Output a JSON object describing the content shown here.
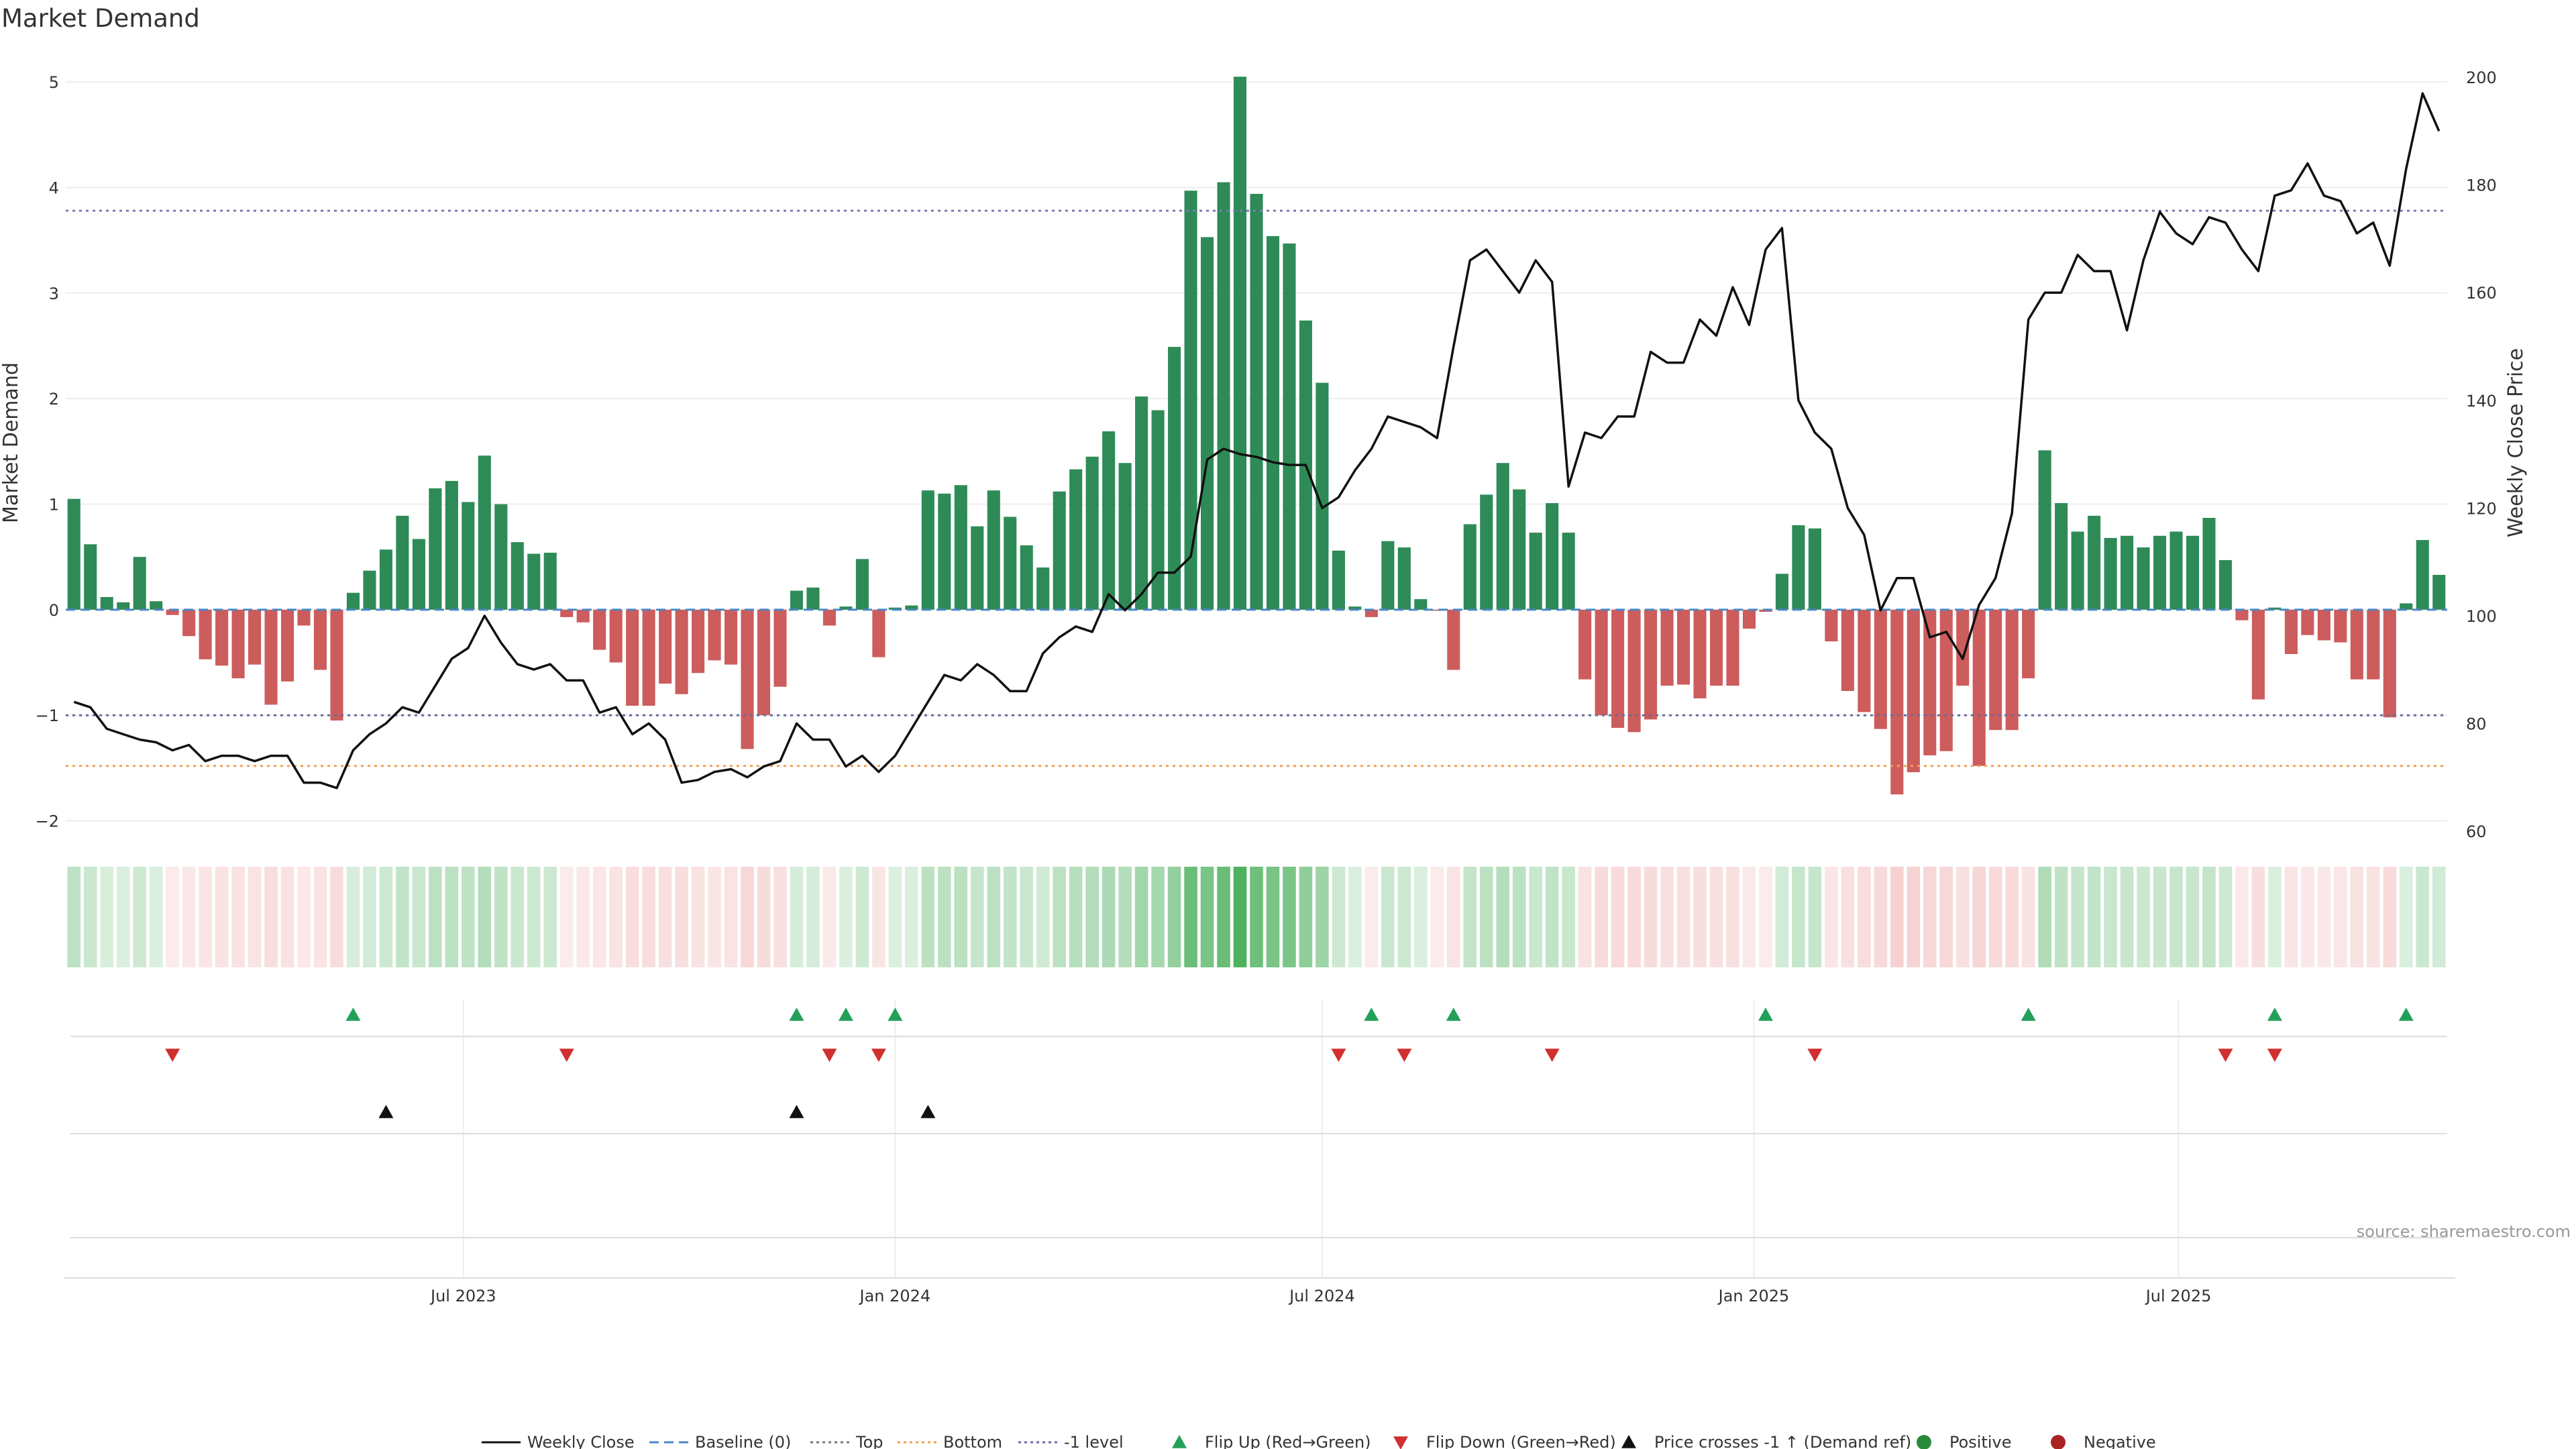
{
  "chart_data": {
    "type": "bar",
    "title": "Market Demand",
    "ylabel": "Market Demand",
    "y2label": "Weekly Close Price",
    "ylim": [
      -2.2,
      5.3
    ],
    "y2lim": [
      58,
      205
    ],
    "yticks": [
      5,
      4,
      3,
      2,
      1,
      0,
      -1,
      -2
    ],
    "ytick_labels": [
      "5",
      "4",
      "3",
      "2",
      "1",
      "0",
      "−1",
      "−2"
    ],
    "y2ticks": [
      200,
      180,
      160,
      140,
      120,
      100,
      80,
      60
    ],
    "x_start": "2023-01-16",
    "x_step_days": 7,
    "x_month_ticks": [
      {
        "date": "2023-07-01",
        "label": "Jul 2023"
      },
      {
        "date": "2024-01-01",
        "label": "Jan 2024"
      },
      {
        "date": "2024-07-01",
        "label": "Jul 2024"
      },
      {
        "date": "2025-01-01",
        "label": "Jan 2025"
      },
      {
        "date": "2025-07-01",
        "label": "Jul 2025"
      }
    ],
    "levels": {
      "top": 3.78,
      "bottom": -1.48,
      "minus_one": -1.0,
      "baseline": 0
    },
    "demand": [
      1.05,
      0.62,
      0.12,
      0.07,
      0.5,
      0.08,
      -0.05,
      -0.25,
      -0.47,
      -0.53,
      -0.65,
      -0.52,
      -0.9,
      -0.68,
      -0.15,
      -0.57,
      -1.05,
      0.16,
      0.37,
      0.57,
      0.89,
      0.67,
      1.15,
      1.22,
      1.02,
      1.46,
      1.0,
      0.64,
      0.53,
      0.54,
      -0.07,
      -0.12,
      -0.38,
      -0.5,
      -0.91,
      -0.91,
      -0.7,
      -0.8,
      -0.6,
      -0.48,
      -0.52,
      -1.32,
      -1.0,
      -0.73,
      0.18,
      0.21,
      -0.15,
      0.03,
      0.48,
      -0.45,
      0.02,
      0.04,
      1.13,
      1.1,
      1.18,
      0.79,
      1.13,
      0.88,
      0.61,
      0.4,
      1.12,
      1.33,
      1.45,
      1.69,
      1.39,
      2.02,
      1.89,
      2.49,
      3.97,
      3.53,
      4.05,
      5.05,
      3.94,
      3.54,
      3.47,
      2.74,
      2.15,
      0.56,
      0.03,
      -0.07,
      0.65,
      0.59,
      0.1,
      -0.01,
      -0.57,
      0.81,
      1.09,
      1.39,
      1.14,
      0.73,
      1.01,
      0.73,
      -0.66,
      -1.0,
      -1.12,
      -1.16,
      -1.04,
      -0.72,
      -0.71,
      -0.84,
      -0.72,
      -0.72,
      -0.18,
      -0.02,
      0.34,
      0.8,
      0.77,
      -0.3,
      -0.77,
      -0.97,
      -1.13,
      -1.75,
      -1.54,
      -1.38,
      -1.34,
      -0.72,
      -1.48,
      -1.14,
      -1.14,
      -0.65,
      1.51,
      1.01,
      0.74,
      0.89,
      0.68,
      0.7,
      0.59,
      0.7,
      0.74,
      0.7,
      0.87,
      0.47,
      -0.1,
      -0.85,
      0.02,
      -0.42,
      -0.24,
      -0.29,
      -0.31,
      -0.66,
      -0.66,
      -1.02,
      0.06,
      0.66,
      0.33
    ],
    "price": [
      84,
      83,
      79,
      78,
      77,
      76.5,
      75,
      76,
      73,
      74,
      74,
      73,
      74,
      74,
      69,
      69,
      68,
      75,
      78,
      80,
      83,
      82,
      87,
      92,
      94,
      100,
      95,
      91,
      90,
      91,
      88,
      88,
      82,
      83,
      78,
      80,
      77,
      69,
      69.5,
      71,
      71.5,
      70,
      72,
      73,
      80,
      77,
      77,
      72,
      74,
      71,
      74,
      79,
      84,
      89,
      88,
      91,
      89,
      86,
      86,
      93,
      96,
      98,
      97,
      104,
      101,
      104,
      108,
      108,
      111,
      129,
      131,
      130,
      129.5,
      128.5,
      128,
      128,
      120,
      122,
      127,
      131,
      137,
      136,
      135,
      133,
      150,
      166,
      168,
      164,
      160,
      166,
      162,
      124,
      134,
      133,
      137,
      137,
      149,
      147,
      147,
      155,
      152,
      161,
      154,
      168,
      172,
      140,
      134,
      131,
      120,
      115,
      101,
      107,
      107,
      96,
      97,
      92,
      102,
      107,
      119,
      155,
      160,
      160,
      167,
      164,
      164,
      153,
      166,
      175,
      171,
      169,
      174,
      173,
      168,
      164,
      178,
      179,
      184,
      178,
      177,
      171,
      173,
      165,
      183,
      197,
      190
    ],
    "bands": {
      "labels": [
        "Positive",
        "Negative"
      ],
      "colors": {
        "positive": "#3aa84c",
        "negative": "#e06666"
      }
    },
    "flip_up": [
      17,
      44,
      47,
      50,
      79,
      84,
      103,
      119,
      134,
      142
    ],
    "flip_down": [
      6,
      30,
      46,
      49,
      77,
      81,
      90,
      106,
      131,
      134
    ],
    "demand_ref_cross": [
      19,
      44,
      52
    ],
    "legend": [
      {
        "label": "Weekly Close",
        "kind": "line-solid",
        "color": "#111111"
      },
      {
        "label": "Baseline (0)",
        "kind": "line-dash",
        "color": "#4a86c8"
      },
      {
        "label": "Top",
        "kind": "line-dot",
        "color": "#777777"
      },
      {
        "label": "Bottom",
        "kind": "line-dot",
        "color": "#f0a050"
      },
      {
        "label": "-1 level",
        "kind": "line-dot",
        "color": "#6a6aaa"
      },
      {
        "label": "Flip Up (Red→Green)",
        "kind": "tri-up",
        "color": "#22a05a"
      },
      {
        "label": "Flip Down (Green→Red)",
        "kind": "tri-down",
        "color": "#d03030"
      },
      {
        "label": "Price crosses -1 ↑ (Demand ref)",
        "kind": "tri-up",
        "color": "#111111"
      },
      {
        "label": "Positive",
        "kind": "dot",
        "color": "#2a8a3a"
      },
      {
        "label": "Negative",
        "kind": "dot",
        "color": "#aa2222"
      }
    ],
    "source": "source: sharemaestro.com",
    "colors": {
      "pos_bar": "#2e8b57",
      "neg_bar": "#cd5c5c",
      "price_line": "#111111",
      "top_line": "#7b7bb0",
      "bottom_line": "#f0a050",
      "minus_one_line": "#6a6aa0"
    }
  }
}
